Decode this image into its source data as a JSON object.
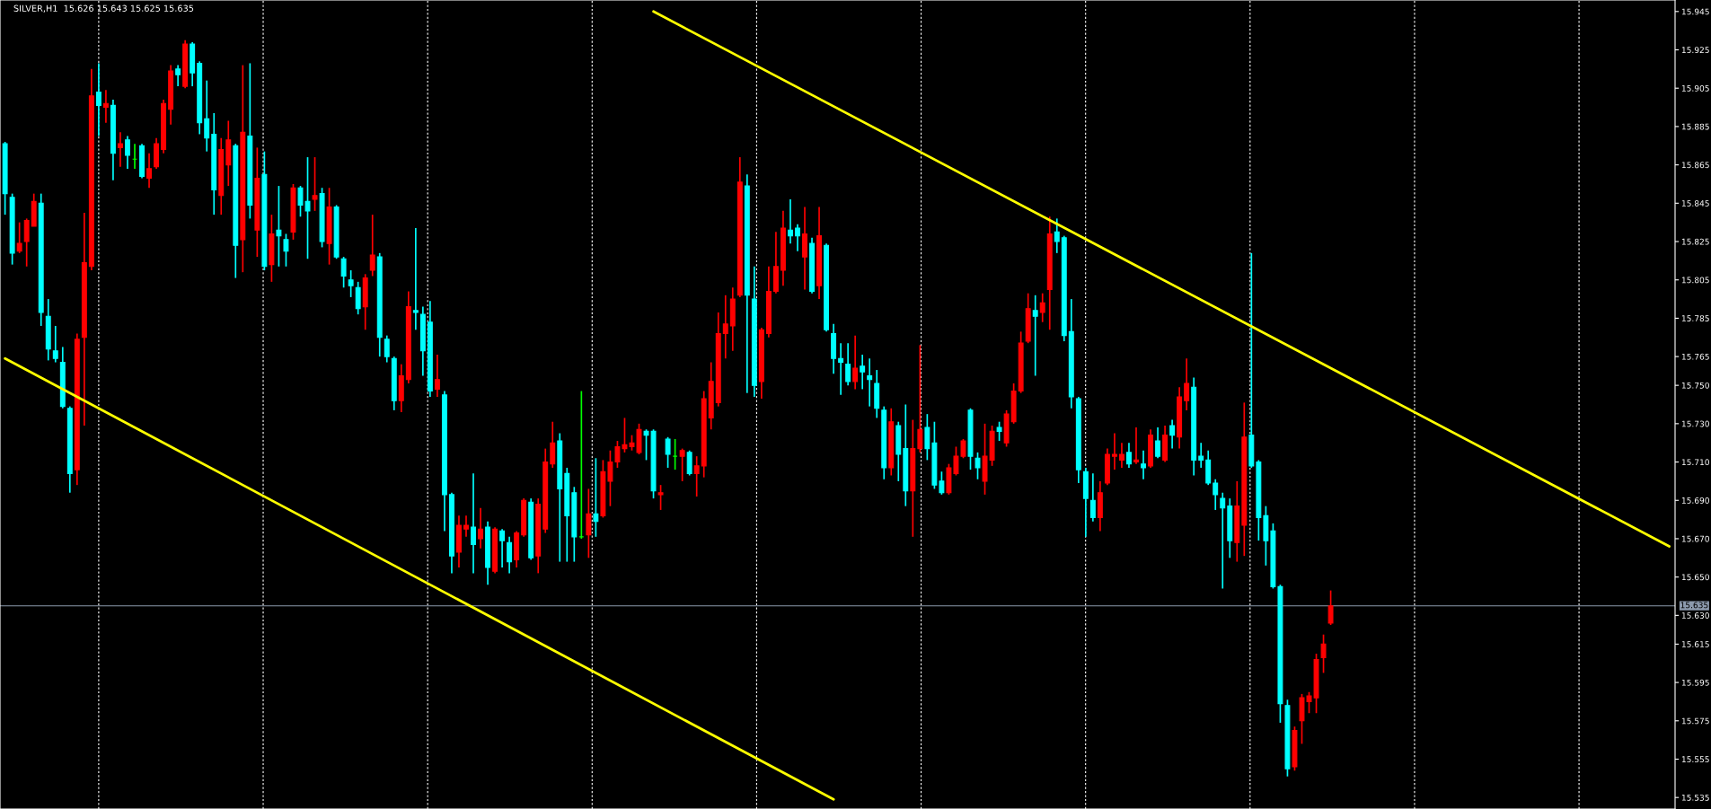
{
  "chart_data": {
    "type": "candlestick",
    "title": "SILVER,H1  15.626 15.643 15.625 15.635",
    "categories": [
      null,
      null,
      null,
      null,
      null,
      null,
      null,
      null,
      null,
      null,
      null,
      null,
      null,
      null,
      null,
      null,
      null,
      null,
      null,
      null,
      null,
      null,
      null,
      null,
      null,
      null,
      null,
      null,
      null,
      null,
      null,
      null,
      null,
      null,
      null,
      null,
      null,
      null,
      null,
      null,
      null,
      null,
      null,
      null,
      null,
      null,
      null,
      null,
      null,
      null,
      null,
      null,
      null,
      null,
      null,
      null,
      null,
      null,
      null,
      null,
      null,
      null,
      null,
      null,
      null,
      null,
      null,
      null,
      null,
      null,
      null,
      null,
      null,
      null,
      null,
      null,
      null,
      null,
      null,
      null,
      null,
      null,
      null,
      null,
      null,
      null,
      null,
      null,
      null,
      null,
      null,
      null,
      null,
      null,
      null,
      null,
      null,
      null,
      null,
      null,
      null,
      null,
      null,
      null,
      null,
      null,
      null,
      null,
      null,
      null,
      null,
      null,
      null,
      null,
      null,
      null,
      null,
      null,
      null,
      null,
      null,
      null,
      null,
      null,
      null,
      null,
      null,
      null,
      null,
      null,
      null,
      null,
      null,
      null,
      null,
      null,
      null,
      null,
      null,
      null,
      null,
      null,
      null,
      null,
      null,
      null,
      null,
      null,
      null,
      null,
      null,
      null,
      null,
      null,
      null,
      null,
      null,
      null,
      null,
      null,
      null,
      null,
      null,
      null,
      null,
      null,
      null,
      null,
      null,
      null,
      null,
      null,
      null,
      null,
      null,
      null,
      null,
      null,
      null,
      null,
      null,
      null,
      null,
      null,
      null,
      null,
      null,
      null,
      null,
      null,
      null,
      null,
      null,
      null,
      null,
      null,
      null,
      null,
      null,
      null,
      null,
      null,
      null,
      null,
      null,
      null,
      null,
      null,
      null,
      null,
      null,
      null,
      null,
      null,
      null,
      null,
      null,
      null,
      null,
      null,
      null,
      null,
      null,
      null,
      null,
      null,
      null,
      null,
      null,
      null,
      null,
      null
    ],
    "ohlc": [
      [
        15.876,
        15.877,
        15.839,
        15.85
      ],
      [
        15.848,
        15.85,
        15.813,
        15.819
      ],
      [
        15.82,
        15.835,
        15.819,
        15.824
      ],
      [
        15.825,
        15.837,
        15.812,
        15.836
      ],
      [
        15.833,
        15.85,
        15.833,
        15.846
      ],
      [
        15.845,
        15.85,
        15.781,
        15.788
      ],
      [
        15.786,
        15.795,
        15.763,
        15.769
      ],
      [
        15.768,
        15.781,
        15.762,
        15.764
      ],
      [
        15.762,
        15.77,
        15.738,
        15.739
      ],
      [
        15.738,
        15.739,
        15.694,
        15.704
      ],
      [
        15.706,
        15.777,
        15.698,
        15.774
      ],
      [
        15.775,
        15.84,
        15.729,
        15.814
      ],
      [
        15.812,
        15.915,
        15.81,
        15.901
      ],
      [
        15.903,
        15.918,
        15.88,
        15.896
      ],
      [
        15.895,
        15.904,
        15.887,
        15.897
      ],
      [
        15.896,
        15.899,
        15.857,
        15.871
      ],
      [
        15.874,
        15.882,
        15.864,
        15.876
      ],
      [
        15.878,
        15.88,
        15.863,
        15.87
      ],
      [
        15.868,
        15.876,
        15.863,
        15.868
      ],
      [
        15.875,
        15.876,
        15.858,
        15.859
      ],
      [
        15.858,
        15.871,
        15.853,
        15.863
      ],
      [
        15.864,
        15.879,
        15.863,
        15.876
      ],
      [
        15.873,
        15.899,
        15.871,
        15.897
      ],
      [
        15.894,
        15.917,
        15.886,
        15.914
      ],
      [
        15.915,
        15.917,
        15.906,
        15.912
      ],
      [
        15.906,
        15.93,
        15.905,
        15.928
      ],
      [
        15.928,
        15.929,
        15.906,
        15.913
      ],
      [
        15.918,
        15.919,
        15.881,
        15.887
      ],
      [
        15.889,
        15.909,
        15.872,
        15.879
      ],
      [
        15.881,
        15.892,
        15.839,
        15.852
      ],
      [
        15.849,
        15.879,
        15.839,
        15.873
      ],
      [
        15.865,
        15.888,
        15.854,
        15.878
      ],
      [
        15.875,
        15.876,
        15.806,
        15.823
      ],
      [
        15.826,
        15.917,
        15.809,
        15.882
      ],
      [
        15.88,
        15.918,
        15.837,
        15.844
      ],
      [
        15.831,
        15.874,
        15.817,
        15.858
      ],
      [
        15.86,
        15.872,
        15.81,
        15.812
      ],
      [
        15.813,
        15.839,
        15.804,
        15.829
      ],
      [
        15.831,
        15.854,
        15.812,
        15.828
      ],
      [
        15.826,
        15.829,
        15.812,
        15.82
      ],
      [
        15.83,
        15.855,
        15.826,
        15.853
      ],
      [
        15.853,
        15.854,
        15.838,
        15.844
      ],
      [
        15.846,
        15.869,
        15.816,
        15.841
      ],
      [
        15.847,
        15.869,
        15.841,
        15.849
      ],
      [
        15.85,
        15.853,
        15.822,
        15.825
      ],
      [
        15.824,
        15.853,
        15.813,
        15.843
      ],
      [
        15.843,
        15.844,
        15.816,
        15.817
      ],
      [
        15.816,
        15.817,
        15.801,
        15.807
      ],
      [
        15.805,
        15.81,
        15.796,
        15.802
      ],
      [
        15.801,
        15.804,
        15.787,
        15.79
      ],
      [
        15.791,
        15.808,
        15.779,
        15.806
      ],
      [
        15.81,
        15.839,
        15.807,
        15.818
      ],
      [
        15.817,
        15.819,
        15.765,
        15.775
      ],
      [
        15.774,
        15.776,
        15.762,
        15.765
      ],
      [
        15.764,
        15.765,
        15.737,
        15.742
      ],
      [
        15.742,
        15.761,
        15.736,
        15.755
      ],
      [
        15.753,
        15.799,
        15.751,
        15.791
      ],
      [
        15.789,
        15.832,
        15.779,
        15.788
      ],
      [
        15.787,
        15.791,
        15.755,
        15.768
      ],
      [
        15.783,
        15.794,
        15.744,
        15.747
      ],
      [
        15.748,
        15.766,
        15.744,
        15.753
      ],
      [
        15.745,
        15.747,
        15.674,
        15.693
      ],
      [
        15.693,
        15.694,
        15.652,
        15.661
      ],
      [
        15.663,
        15.682,
        15.655,
        15.677
      ],
      [
        15.675,
        15.682,
        15.671,
        15.677
      ],
      [
        15.676,
        15.704,
        15.652,
        15.667
      ],
      [
        15.67,
        15.686,
        15.665,
        15.675
      ],
      [
        15.676,
        15.679,
        15.646,
        15.655
      ],
      [
        15.653,
        15.676,
        15.652,
        15.675
      ],
      [
        15.674,
        15.675,
        15.655,
        15.669
      ],
      [
        15.668,
        15.671,
        15.652,
        15.658
      ],
      [
        15.659,
        15.674,
        15.655,
        15.673
      ],
      [
        15.672,
        15.691,
        15.671,
        15.69
      ],
      [
        15.689,
        15.691,
        15.659,
        15.66
      ],
      [
        15.661,
        15.691,
        15.652,
        15.688
      ],
      [
        15.675,
        15.717,
        15.673,
        15.71
      ],
      [
        15.709,
        15.731,
        15.707,
        15.72
      ],
      [
        15.721,
        15.725,
        15.658,
        15.696
      ],
      [
        15.704,
        15.707,
        15.658,
        15.682
      ],
      [
        15.694,
        15.697,
        15.658,
        15.671
      ],
      [
        15.671,
        15.747,
        15.67,
        15.671
      ],
      [
        15.672,
        15.696,
        15.66,
        15.683
      ],
      [
        15.683,
        15.712,
        15.671,
        15.679
      ],
      [
        15.682,
        15.711,
        15.681,
        15.705
      ],
      [
        15.7,
        15.716,
        15.687,
        15.71
      ],
      [
        15.71,
        15.721,
        15.707,
        15.718
      ],
      [
        15.717,
        15.733,
        15.715,
        15.719
      ],
      [
        15.718,
        15.724,
        15.716,
        15.72
      ],
      [
        15.715,
        15.73,
        15.714,
        15.727
      ],
      [
        15.726,
        15.727,
        15.711,
        15.724
      ],
      [
        15.726,
        15.727,
        15.691,
        15.695
      ],
      [
        15.693,
        15.698,
        15.685,
        15.694
      ],
      [
        15.722,
        15.723,
        15.707,
        15.714
      ],
      [
        15.713,
        15.722,
        15.706,
        15.713
      ],
      [
        15.713,
        15.717,
        15.7,
        15.716
      ],
      [
        15.715,
        15.716,
        15.703,
        15.704
      ],
      [
        15.704,
        15.713,
        15.692,
        15.708
      ],
      [
        15.708,
        15.747,
        15.702,
        15.743
      ],
      [
        15.733,
        15.762,
        15.727,
        15.752
      ],
      [
        15.741,
        15.788,
        15.739,
        15.777
      ],
      [
        15.777,
        15.797,
        15.764,
        15.782
      ],
      [
        15.781,
        15.801,
        15.768,
        15.795
      ],
      [
        15.797,
        15.869,
        15.796,
        15.856
      ],
      [
        15.854,
        15.86,
        15.746,
        15.797
      ],
      [
        15.795,
        15.812,
        15.744,
        15.75
      ],
      [
        15.752,
        15.78,
        15.743,
        15.779
      ],
      [
        15.777,
        15.812,
        15.775,
        15.799
      ],
      [
        15.799,
        15.83,
        15.798,
        15.812
      ],
      [
        15.81,
        15.841,
        15.802,
        15.832
      ],
      [
        15.831,
        15.847,
        15.824,
        15.828
      ],
      [
        15.832,
        15.834,
        15.82,
        15.828
      ],
      [
        15.817,
        15.843,
        15.8,
        15.829
      ],
      [
        15.824,
        15.827,
        15.798,
        15.799
      ],
      [
        15.802,
        15.843,
        15.795,
        15.828
      ],
      [
        15.823,
        15.824,
        15.778,
        15.779
      ],
      [
        15.777,
        15.782,
        15.756,
        15.764
      ],
      [
        15.764,
        15.772,
        15.745,
        15.762
      ],
      [
        15.761,
        15.772,
        15.75,
        15.752
      ],
      [
        15.752,
        15.776,
        15.748,
        15.759
      ],
      [
        15.76,
        15.766,
        15.748,
        15.757
      ],
      [
        15.755,
        15.764,
        15.739,
        15.753
      ],
      [
        15.751,
        15.758,
        15.733,
        15.738
      ],
      [
        15.737,
        15.739,
        15.701,
        15.707
      ],
      [
        15.707,
        15.738,
        15.703,
        15.731
      ],
      [
        15.729,
        15.731,
        15.7,
        15.714
      ],
      [
        15.717,
        15.74,
        15.687,
        15.695
      ],
      [
        15.695,
        15.732,
        15.671,
        15.717
      ],
      [
        15.717,
        15.771,
        15.715,
        15.727
      ],
      [
        15.728,
        15.735,
        15.711,
        15.717
      ],
      [
        15.72,
        15.731,
        15.696,
        15.698
      ],
      [
        15.7,
        15.705,
        15.693,
        15.694
      ],
      [
        15.694,
        15.709,
        15.693,
        15.707
      ],
      [
        15.704,
        15.718,
        15.703,
        15.713
      ],
      [
        15.713,
        15.722,
        15.712,
        15.721
      ],
      [
        15.737,
        15.738,
        15.706,
        15.713
      ],
      [
        15.712,
        15.715,
        15.701,
        15.707
      ],
      [
        15.7,
        15.73,
        15.693,
        15.713
      ],
      [
        15.711,
        15.729,
        15.708,
        15.726
      ],
      [
        15.728,
        15.731,
        15.721,
        15.726
      ],
      [
        15.72,
        15.737,
        15.718,
        15.735
      ],
      [
        15.731,
        15.751,
        15.73,
        15.747
      ],
      [
        15.747,
        15.778,
        15.746,
        15.772
      ],
      [
        15.773,
        15.798,
        15.772,
        15.79
      ],
      [
        15.789,
        15.797,
        15.755,
        15.786
      ],
      [
        15.788,
        15.798,
        15.783,
        15.793
      ],
      [
        15.8,
        15.838,
        15.779,
        15.829
      ],
      [
        15.83,
        15.837,
        15.819,
        15.825
      ],
      [
        15.827,
        15.828,
        15.773,
        15.776
      ],
      [
        15.778,
        15.795,
        15.738,
        15.744
      ],
      [
        15.743,
        15.744,
        15.699,
        15.706
      ],
      [
        15.705,
        15.707,
        15.671,
        15.691
      ],
      [
        15.69,
        15.704,
        15.679,
        15.681
      ],
      [
        15.681,
        15.7,
        15.674,
        15.694
      ],
      [
        15.699,
        15.717,
        15.698,
        15.714
      ],
      [
        15.713,
        15.725,
        15.706,
        15.714
      ],
      [
        15.711,
        15.72,
        15.707,
        15.714
      ],
      [
        15.715,
        15.72,
        15.707,
        15.709
      ],
      [
        15.71,
        15.728,
        15.709,
        15.711
      ],
      [
        15.709,
        15.716,
        15.701,
        15.707
      ],
      [
        15.708,
        15.727,
        15.707,
        15.724
      ],
      [
        15.721,
        15.728,
        15.712,
        15.713
      ],
      [
        15.711,
        15.729,
        15.71,
        15.724
      ],
      [
        15.729,
        15.732,
        15.717,
        15.724
      ],
      [
        15.723,
        15.749,
        15.717,
        15.744
      ],
      [
        15.742,
        15.764,
        15.737,
        15.751
      ],
      [
        15.749,
        15.754,
        15.703,
        15.711
      ],
      [
        15.713,
        15.72,
        15.707,
        15.711
      ],
      [
        15.711,
        15.716,
        15.698,
        15.699
      ],
      [
        15.699,
        15.701,
        15.685,
        15.693
      ],
      [
        15.691,
        15.694,
        15.644,
        15.686
      ],
      [
        15.687,
        15.691,
        15.66,
        15.669
      ],
      [
        15.668,
        15.7,
        15.658,
        15.687
      ],
      [
        15.677,
        15.741,
        15.661,
        15.723
      ],
      [
        15.724,
        15.819,
        15.707,
        15.708
      ],
      [
        15.71,
        15.711,
        15.669,
        15.681
      ],
      [
        15.682,
        15.687,
        15.656,
        15.669
      ],
      [
        15.674,
        15.678,
        15.644,
        15.645
      ],
      [
        15.645,
        15.646,
        15.574,
        15.584
      ],
      [
        15.583,
        15.586,
        15.546,
        15.55
      ],
      [
        15.551,
        15.572,
        15.549,
        15.57
      ],
      [
        15.575,
        15.589,
        15.563,
        15.587
      ],
      [
        15.585,
        15.59,
        15.579,
        15.588
      ],
      [
        15.587,
        15.61,
        15.579,
        15.607
      ],
      [
        15.608,
        15.62,
        15.6,
        15.615
      ],
      [
        15.626,
        15.643,
        15.625,
        15.635
      ],
      null,
      null,
      null,
      null,
      null,
      null,
      null,
      null,
      null,
      null,
      null,
      null,
      null,
      null,
      null,
      null,
      null,
      null,
      null,
      null,
      null,
      null,
      null,
      null,
      null,
      null,
      null,
      null,
      null,
      null,
      null,
      null,
      null,
      null,
      null,
      null,
      null,
      null,
      null,
      null,
      null,
      null,
      null,
      null,
      null,
      null,
      null
    ],
    "colors": [
      "#00ffff",
      "#00ffff",
      "#ff0000",
      "#ff0000",
      "#ff0000",
      "#00ffff",
      "#00ffff",
      "#00ffff",
      "#00ffff",
      "#00ffff",
      "#ff0000",
      "#ff0000",
      "#ff0000",
      "#00ffff",
      "#ff0000",
      "#00ffff",
      "#ff0000",
      "#00ffff",
      "#00ff00",
      "#00ffff",
      "#ff0000",
      "#ff0000",
      "#ff0000",
      "#ff0000",
      "#00ffff",
      "#ff0000",
      "#00ffff",
      "#00ffff",
      "#00ffff",
      "#00ffff",
      "#ff0000",
      "#ff0000",
      "#00ffff",
      "#ff0000",
      "#00ffff",
      "#ff0000",
      "#00ffff",
      "#ff0000",
      "#00ffff",
      "#00ffff",
      "#ff0000",
      "#00ffff",
      "#00ffff",
      "#ff0000",
      "#00ffff",
      "#ff0000",
      "#00ffff",
      "#00ffff",
      "#00ffff",
      "#00ffff",
      "#ff0000",
      "#ff0000",
      "#00ffff",
      "#00ffff",
      "#00ffff",
      "#ff0000",
      "#ff0000",
      "#00ffff",
      "#00ffff",
      "#00ffff",
      "#ff0000",
      "#00ffff",
      "#00ffff",
      "#ff0000",
      "#ff0000",
      "#00ffff",
      "#ff0000",
      "#00ffff",
      "#ff0000",
      "#00ffff",
      "#00ffff",
      "#ff0000",
      "#ff0000",
      "#00ffff",
      "#ff0000",
      "#ff0000",
      "#ff0000",
      "#00ffff",
      "#00ffff",
      "#00ffff",
      "#00ff00",
      "#ff0000",
      "#00ffff",
      "#ff0000",
      "#ff0000",
      "#ff0000",
      "#ff0000",
      "#ff0000",
      "#ff0000",
      "#00ffff",
      "#00ffff",
      "#ff0000",
      "#00ffff",
      "#00ff00",
      "#ff0000",
      "#00ffff",
      "#ff0000",
      "#ff0000",
      "#ff0000",
      "#ff0000",
      "#ff0000",
      "#ff0000",
      "#ff0000",
      "#00ffff",
      "#00ffff",
      "#ff0000",
      "#ff0000",
      "#ff0000",
      "#ff0000",
      "#00ffff",
      "#00ffff",
      "#ff0000",
      "#00ffff",
      "#ff0000",
      "#00ffff",
      "#00ffff",
      "#00ffff",
      "#00ffff",
      "#ff0000",
      "#00ffff",
      "#00ffff",
      "#00ffff",
      "#00ffff",
      "#ff0000",
      "#00ffff",
      "#00ffff",
      "#ff0000",
      "#ff0000",
      "#00ffff",
      "#00ffff",
      "#00ffff",
      "#ff0000",
      "#ff0000",
      "#ff0000",
      "#00ffff",
      "#00ffff",
      "#ff0000",
      "#ff0000",
      "#00ffff",
      "#ff0000",
      "#ff0000",
      "#ff0000",
      "#ff0000",
      "#00ffff",
      "#ff0000",
      "#ff0000",
      "#00ffff",
      "#00ffff",
      "#00ffff",
      "#00ffff",
      "#00ffff",
      "#00ffff",
      "#ff0000",
      "#ff0000",
      "#ff0000",
      "#ff0000",
      "#00ffff",
      "#ff0000",
      "#00ffff",
      "#ff0000",
      "#00ffff",
      "#ff0000",
      "#00ffff",
      "#ff0000",
      "#ff0000",
      "#00ffff",
      "#00ffff",
      "#00ffff",
      "#00ffff",
      "#00ffff",
      "#00ffff",
      "#ff0000",
      "#ff0000",
      "#00ffff",
      "#00ffff",
      "#00ffff",
      "#00ffff",
      "#00ffff",
      "#00ffff",
      "#ff0000",
      "#ff0000",
      "#ff0000",
      "#ff0000",
      "#ff0000",
      "#ff0000",
      null,
      null,
      null,
      null,
      null,
      null,
      null,
      null,
      null,
      null,
      null,
      null,
      null,
      null,
      null,
      null,
      null,
      null,
      null,
      null,
      null,
      null,
      null,
      null,
      null,
      null,
      null,
      null,
      null,
      null,
      null,
      null,
      null,
      null,
      null,
      null,
      null,
      null,
      null,
      null,
      null,
      null,
      null,
      null,
      null,
      null,
      null
    ],
    "series": [
      {
        "type": "line",
        "color": "#ffff00",
        "values": [
          null,
          null,
          null,
          null,
          null,
          null,
          null,
          null,
          null,
          null,
          null,
          null,
          null,
          null,
          null,
          null,
          null,
          null,
          null,
          null,
          null,
          null,
          null,
          null,
          null,
          null,
          null,
          null,
          null,
          null,
          null,
          null,
          null,
          null,
          null,
          null,
          null,
          null,
          null,
          null,
          null,
          null,
          null,
          null,
          null,
          null,
          null,
          null,
          null,
          null,
          null,
          null,
          null,
          null,
          null,
          null,
          null,
          null,
          null,
          null,
          null,
          null,
          null,
          null,
          null,
          null,
          null,
          null,
          null,
          null,
          null,
          null,
          null,
          null,
          null,
          null,
          null,
          null,
          null,
          null,
          null,
          null,
          null,
          null,
          null,
          null,
          null,
          null,
          null,
          null,
          15.945,
          null,
          null,
          null,
          null,
          null,
          null,
          null,
          null,
          null,
          null,
          null,
          null,
          null,
          null,
          null,
          null,
          null,
          null,
          null,
          null,
          null,
          null,
          null,
          null,
          null,
          null,
          null,
          null,
          null,
          null,
          null,
          null,
          null,
          null,
          null,
          null,
          null,
          null,
          null,
          null,
          null,
          null,
          null,
          null,
          null,
          null,
          null,
          null,
          null,
          null,
          null,
          null,
          null,
          null,
          null,
          null,
          null,
          null,
          null,
          null,
          null,
          null,
          null,
          null,
          null,
          null,
          null,
          null,
          null,
          null,
          null,
          null,
          null,
          null,
          null,
          null,
          null,
          null,
          null,
          null,
          null,
          null,
          null,
          null,
          null,
          null,
          null,
          null,
          null,
          null,
          null,
          null,
          null,
          null,
          null,
          null,
          null,
          null,
          null,
          null,
          null,
          null,
          null,
          null,
          null,
          null,
          null,
          null,
          null,
          null,
          null,
          null,
          null,
          null,
          null,
          null,
          null,
          null,
          null,
          null,
          null,
          null,
          null,
          null,
          null,
          null,
          null,
          null,
          null,
          null,
          null,
          null,
          null,
          null,
          null,
          null,
          null,
          null,
          null,
          null,
          15.666
        ]
      },
      {
        "type": "line",
        "color": "#ffff00",
        "values": [
          15.764,
          null,
          null,
          null,
          null,
          null,
          null,
          null,
          null,
          null,
          null,
          null,
          null,
          null,
          null,
          null,
          null,
          null,
          null,
          null,
          null,
          null,
          null,
          null,
          null,
          null,
          null,
          null,
          null,
          null,
          null,
          null,
          null,
          null,
          null,
          null,
          null,
          null,
          null,
          null,
          null,
          null,
          null,
          null,
          null,
          null,
          null,
          null,
          null,
          null,
          null,
          null,
          null,
          null,
          null,
          null,
          null,
          null,
          null,
          null,
          null,
          null,
          null,
          null,
          null,
          null,
          null,
          null,
          null,
          null,
          null,
          null,
          null,
          null,
          null,
          null,
          null,
          null,
          null,
          null,
          null,
          null,
          null,
          null,
          null,
          null,
          null,
          null,
          null,
          null,
          null,
          null,
          null,
          null,
          null,
          null,
          null,
          null,
          null,
          null,
          null,
          null,
          null,
          null,
          null,
          null,
          null,
          null,
          null,
          null,
          null,
          null,
          null,
          null,
          null,
          15.534,
          null,
          null,
          null,
          null,
          null,
          null,
          null,
          null,
          null,
          null,
          null,
          null,
          null,
          null,
          null,
          null,
          null,
          null,
          null,
          null,
          null,
          null,
          null,
          null,
          null,
          null,
          null,
          null,
          null,
          null,
          null,
          null,
          null,
          null,
          null,
          null,
          null,
          null,
          null,
          null,
          null,
          null,
          null,
          null,
          null,
          null,
          null,
          null,
          null,
          null,
          null,
          null,
          null,
          null,
          null,
          null,
          null,
          null,
          null,
          null,
          null,
          null,
          null,
          null,
          null,
          null,
          null,
          null,
          null,
          null,
          null,
          null,
          null,
          null,
          null,
          null,
          null,
          null,
          null,
          null,
          null,
          null,
          null,
          null,
          null,
          null,
          null,
          null,
          null,
          null,
          null,
          null,
          null,
          null,
          null,
          null,
          null,
          null,
          null,
          null,
          null,
          null,
          null,
          null,
          null,
          null,
          null,
          null,
          null,
          null,
          null,
          null,
          null,
          null,
          null,
          null
        ]
      }
    ],
    "ylim": [
      15.529,
      15.951
    ],
    "yticks": [
      15.945,
      15.925,
      15.905,
      15.885,
      15.865,
      15.845,
      15.825,
      15.805,
      15.785,
      15.765,
      {
        "value": 15.75,
        "label": "15.750"
      },
      {
        "value": 15.73,
        "label": "15.730"
      },
      {
        "value": 15.71,
        "label": "15.710"
      },
      {
        "value": 15.69,
        "label": "15.690"
      },
      {
        "value": 15.67,
        "label": "15.670"
      },
      {
        "value": 15.65,
        "label": "15.650"
      },
      {
        "value": 15.63,
        "label": "15.630"
      },
      15.615,
      15.595,
      15.575,
      15.555,
      15.535
    ],
    "ref_lines": [
      {
        "axis": "y",
        "value": 15.635,
        "label": "15.635",
        "color": "#8c9aad"
      }
    ],
    "tick_labels": "y"
  }
}
